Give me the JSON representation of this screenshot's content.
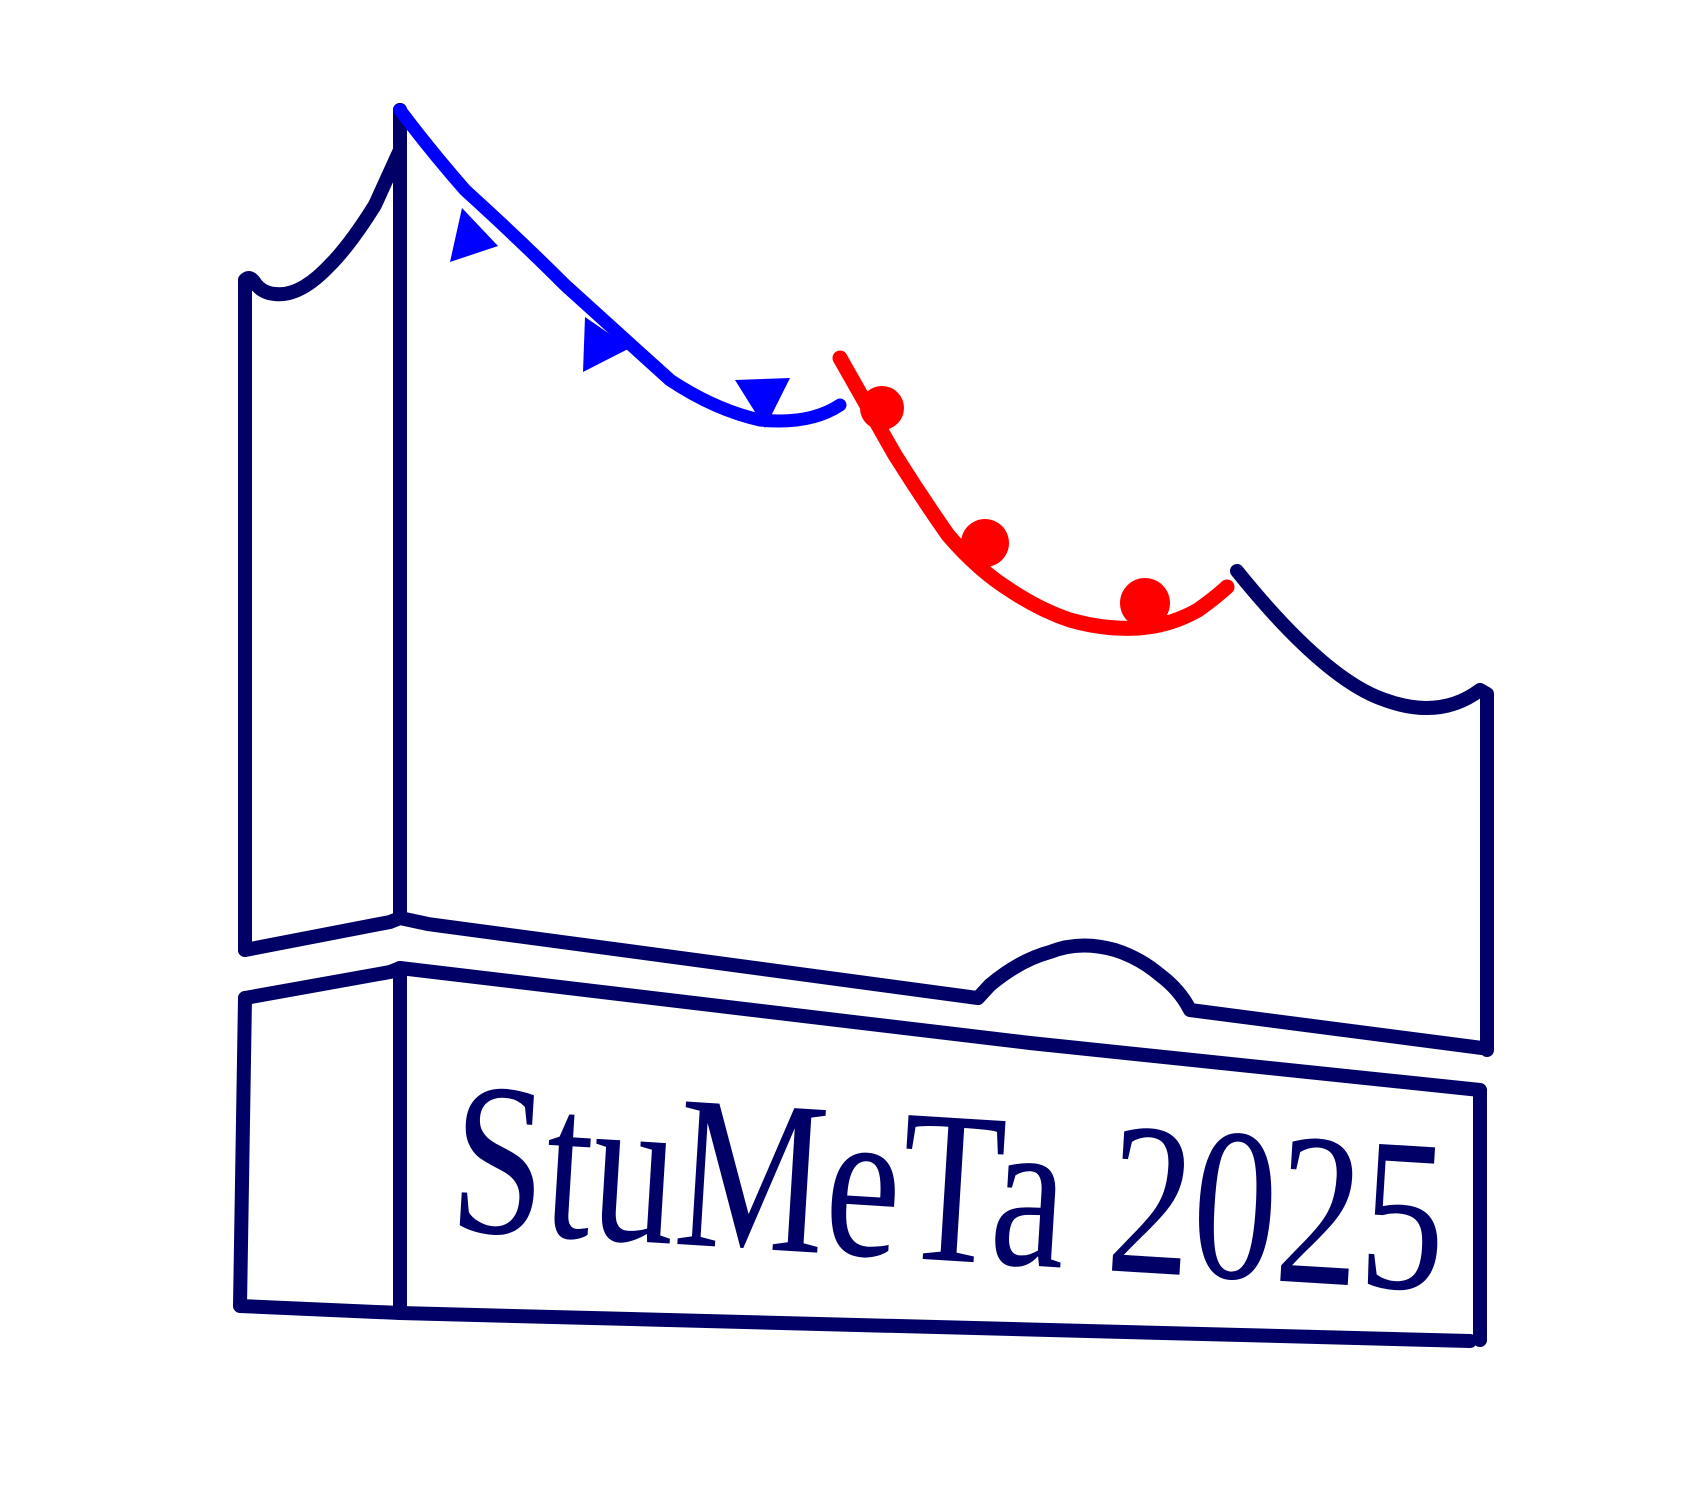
{
  "logo": {
    "text": "StuMeTa 2025",
    "colors": {
      "outline": "#000066",
      "garland_left": "#0000ff",
      "garland_right": "#ff0000",
      "background": "#ffffff"
    },
    "decorations": {
      "left_garland": "bunting-flags",
      "right_garland": "round-lanterns"
    }
  }
}
